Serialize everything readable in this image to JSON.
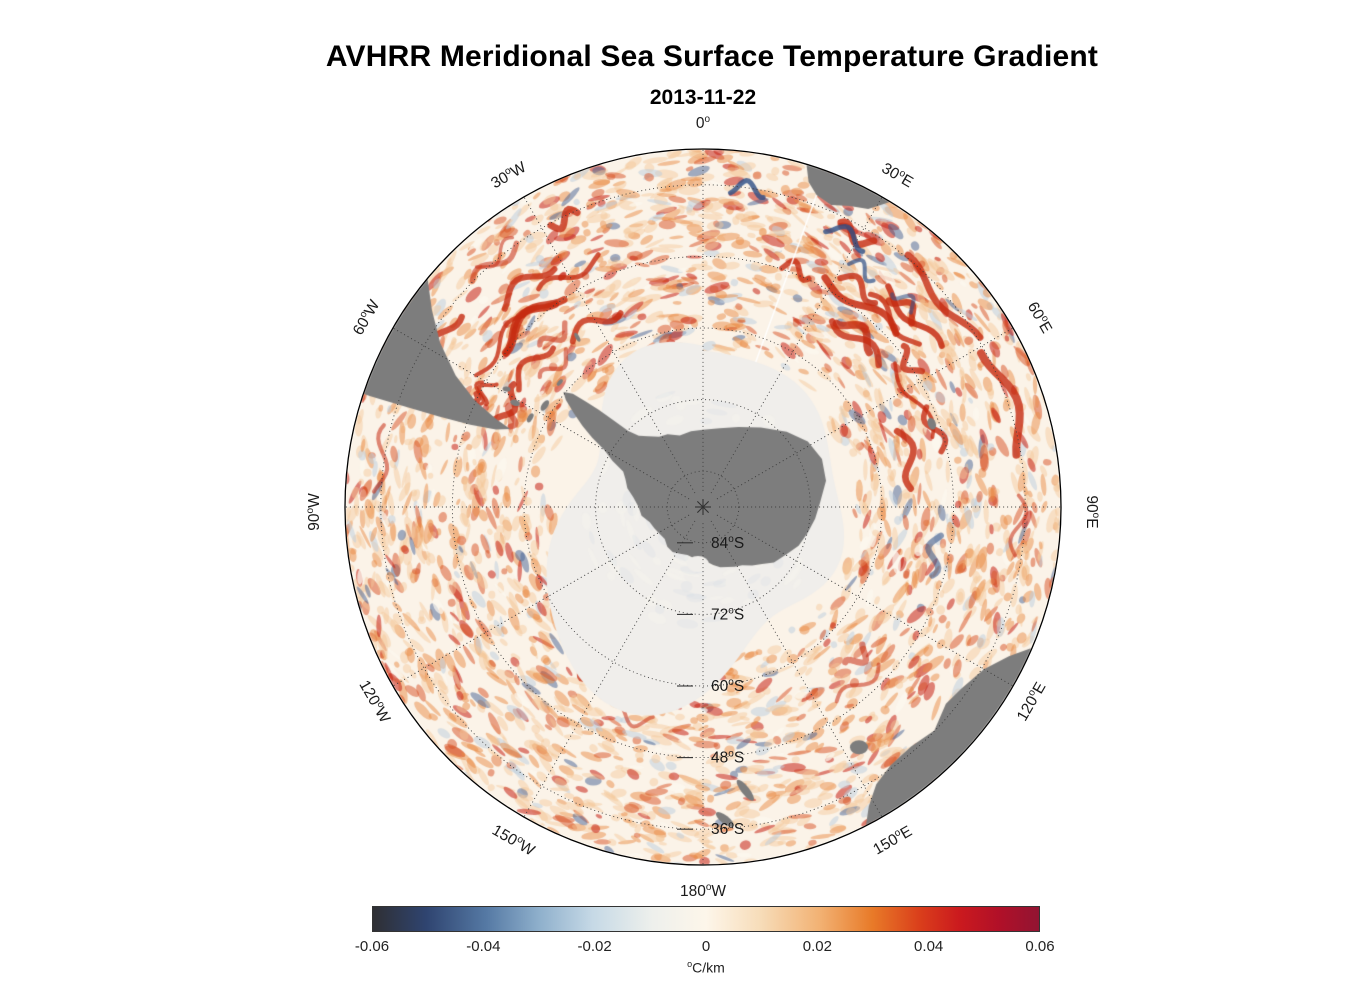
{
  "chart_data": {
    "type": "heatmap",
    "title": "AVHRR Meridional Sea Surface Temperature Gradient",
    "subtitle": "2013-11-22",
    "map": {
      "projection_hint": "south-polar-azimuthal",
      "edge_latitude_deg_south": 30,
      "grid_parallels_deg_south": [
        84,
        72,
        60,
        48,
        36
      ],
      "grid_meridian_step_deg": 30,
      "pole_marker": true,
      "grid_style": "dotted"
    },
    "meridian_labels": [
      {
        "num": "0",
        "hem": "",
        "az": 0
      },
      {
        "num": "30",
        "hem": "E",
        "az": 30
      },
      {
        "num": "60",
        "hem": "E",
        "az": 60
      },
      {
        "num": "90",
        "hem": "E",
        "az": 90
      },
      {
        "num": "120",
        "hem": "E",
        "az": 120
      },
      {
        "num": "150",
        "hem": "E",
        "az": 150
      },
      {
        "num": "180",
        "hem": "W",
        "az": 180
      },
      {
        "num": "150",
        "hem": "W",
        "az": 210
      },
      {
        "num": "120",
        "hem": "W",
        "az": 240
      },
      {
        "num": "90",
        "hem": "W",
        "az": 270
      },
      {
        "num": "60",
        "hem": "W",
        "az": 300
      },
      {
        "num": "30",
        "hem": "W",
        "az": 330
      }
    ],
    "parallel_labels": [
      {
        "num": "84",
        "hem": "S",
        "lat": 84
      },
      {
        "num": "72",
        "hem": "S",
        "lat": 72
      },
      {
        "num": "60",
        "hem": "S",
        "lat": 60
      },
      {
        "num": "48",
        "hem": "S",
        "lat": 48
      },
      {
        "num": "36",
        "hem": "S",
        "lat": 36
      }
    ],
    "colorbar": {
      "min": -0.06,
      "max": 0.06,
      "tick_labels": [
        "-0.06",
        "-0.04",
        "-0.02",
        "0",
        "0.02",
        "0.04",
        "0.06"
      ],
      "unit_sup": "o",
      "unit_text": "C/km",
      "stops": [
        {
          "pos": 0.0,
          "color": "#2f2f33"
        },
        {
          "pos": 0.08,
          "color": "#2f4470"
        },
        {
          "pos": 0.17,
          "color": "#5579a4"
        },
        {
          "pos": 0.25,
          "color": "#8fb0cc"
        },
        {
          "pos": 0.33,
          "color": "#c6d9e6"
        },
        {
          "pos": 0.42,
          "color": "#eef0ec"
        },
        {
          "pos": 0.5,
          "color": "#fdf6ea"
        },
        {
          "pos": 0.58,
          "color": "#f7ddba"
        },
        {
          "pos": 0.67,
          "color": "#f2b274"
        },
        {
          "pos": 0.75,
          "color": "#e87a28"
        },
        {
          "pos": 0.82,
          "color": "#da3f1b"
        },
        {
          "pos": 0.88,
          "color": "#cb1a1e"
        },
        {
          "pos": 0.94,
          "color": "#b11028"
        },
        {
          "pos": 1.0,
          "color": "#921432"
        }
      ]
    },
    "colors": {
      "land": "#7d7d7d",
      "ice": "#f0eeeb",
      "ocean_base": "#fbf3e8",
      "grid": "#3c3c3c",
      "outline": "#000000",
      "streak_red": "#c62a10",
      "streak_blue": "#2e4f86"
    }
  }
}
